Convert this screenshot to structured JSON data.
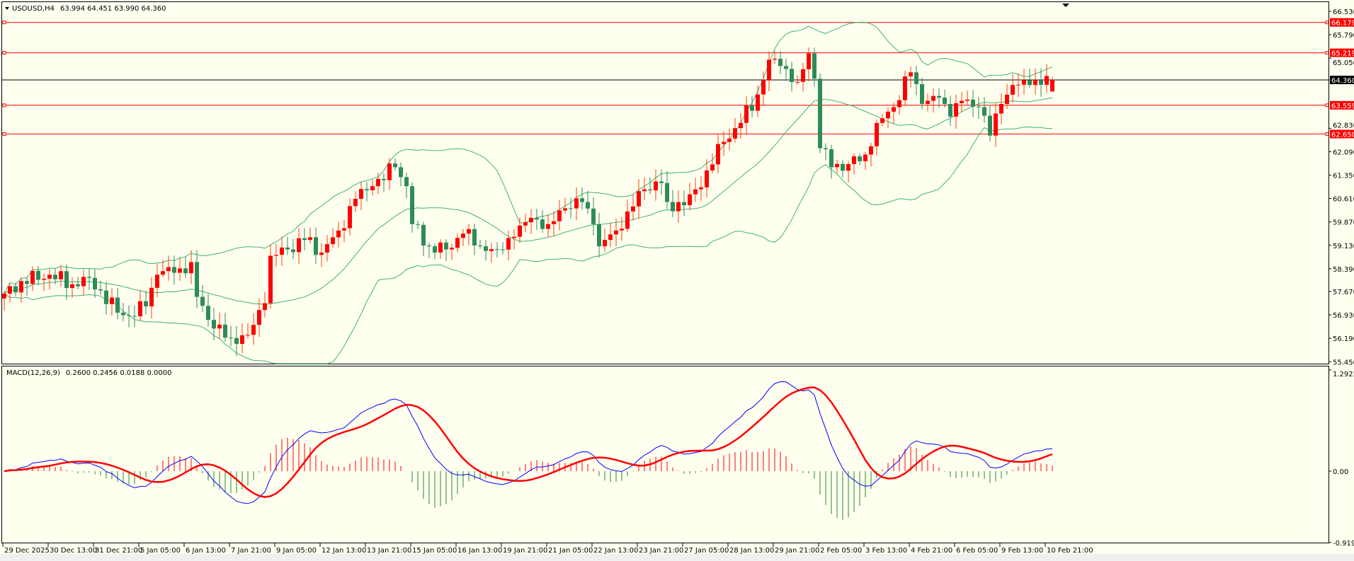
{
  "header": {
    "symbol_label": "USOUSD,H4",
    "ohlc": "63.994 64.451 63.990 64.360"
  },
  "macd_header": {
    "label": "MACD(12,26,9)",
    "values": "0.2600 0.2456 0.0188 0.0000"
  },
  "price_axis": {
    "ticks": [
      "66.530",
      "65.790",
      "65.050",
      "62.830",
      "62.090",
      "61.350",
      "60.610",
      "59.870",
      "59.130",
      "58.390",
      "57.670",
      "56.930",
      "56.190",
      "55.450"
    ]
  },
  "macd_axis": {
    "ticks": [
      "1.2922",
      "0.00",
      "-0.9194"
    ]
  },
  "time_axis": {
    "labels": [
      "29 Dec 2025",
      "30 Dec 13:00",
      "31 Dec 21:00",
      "5 Jan 05:00",
      "6 Jan 13:00",
      "7 Jan 21:00",
      "9 Jan 05:00",
      "12 Jan 13:00",
      "13 Jan 21:00",
      "15 Jan 05:00",
      "16 Jan 13:00",
      "19 Jan 21:00",
      "21 Jan 05:00",
      "22 Jan 13:00",
      "23 Jan 21:00",
      "27 Jan 05:00",
      "28 Jan 13:00",
      "29 Jan 21:00",
      "2 Feb 05:00",
      "3 Feb 13:00",
      "4 Feb 21:00",
      "6 Feb 05:00",
      "9 Feb 13:00",
      "10 Feb 21:00"
    ]
  },
  "levels": [
    {
      "price": "66.179",
      "color": "#ff0000"
    },
    {
      "price": "65.219",
      "color": "#ff0000"
    },
    {
      "price": "63.559",
      "color": "#ff0000"
    },
    {
      "price": "62.650",
      "color": "#ff0000"
    }
  ],
  "current_price": "64.360",
  "colors": {
    "background": "#fffff0",
    "bull": "#ff0000",
    "bear": "#2e8b57",
    "bands": "#3cb371",
    "macd": "#0000ff",
    "signal": "#ff0000"
  },
  "chart_data": {
    "type": "candlestick",
    "symbol": "USOUSD",
    "timeframe": "H4",
    "bars": 186,
    "close_anchors": [
      [
        0,
        57.6
      ],
      [
        3,
        58.0
      ],
      [
        8,
        58.2
      ],
      [
        12,
        57.9
      ],
      [
        15,
        58.1
      ],
      [
        17,
        57.7
      ],
      [
        20,
        57.0
      ],
      [
        22,
        56.9
      ],
      [
        25,
        57.2
      ],
      [
        27,
        58.2
      ],
      [
        31,
        58.4
      ],
      [
        33,
        58.6
      ],
      [
        34,
        57.5
      ],
      [
        37,
        56.5
      ],
      [
        40,
        56.2
      ],
      [
        43,
        56.3
      ],
      [
        46,
        57.3
      ],
      [
        47,
        58.8
      ],
      [
        50,
        59.0
      ],
      [
        53,
        59.3
      ],
      [
        56,
        58.9
      ],
      [
        59,
        59.6
      ],
      [
        62,
        60.6
      ],
      [
        65,
        61.0
      ],
      [
        69,
        61.6
      ],
      [
        71,
        61.0
      ],
      [
        72,
        59.8
      ],
      [
        75,
        59.1
      ],
      [
        78,
        59.0
      ],
      [
        81,
        59.5
      ],
      [
        84,
        59.1
      ],
      [
        87,
        59.0
      ],
      [
        90,
        59.4
      ],
      [
        93,
        60.0
      ],
      [
        96,
        59.8
      ],
      [
        99,
        60.3
      ],
      [
        102,
        60.5
      ],
      [
        104,
        59.8
      ],
      [
        105,
        59.1
      ],
      [
        108,
        59.6
      ],
      [
        110,
        60.2
      ],
      [
        113,
        60.9
      ],
      [
        116,
        61.1
      ],
      [
        117,
        60.5
      ],
      [
        120,
        60.4
      ],
      [
        122,
        60.9
      ],
      [
        124,
        61.5
      ],
      [
        127,
        62.4
      ],
      [
        130,
        63.0
      ],
      [
        133,
        63.9
      ],
      [
        135,
        65.0
      ],
      [
        137,
        64.8
      ],
      [
        140,
        64.3
      ],
      [
        142,
        65.2
      ],
      [
        143,
        64.4
      ],
      [
        144,
        62.2
      ],
      [
        146,
        61.6
      ],
      [
        149,
        61.7
      ],
      [
        152,
        62.0
      ],
      [
        154,
        63.0
      ],
      [
        157,
        63.5
      ],
      [
        160,
        64.6
      ],
      [
        162,
        63.6
      ],
      [
        165,
        63.8
      ],
      [
        167,
        63.2
      ],
      [
        169,
        63.7
      ],
      [
        172,
        63.5
      ],
      [
        174,
        62.6
      ],
      [
        176,
        63.6
      ],
      [
        178,
        64.2
      ],
      [
        181,
        64.2
      ],
      [
        185,
        64.36
      ]
    ],
    "last_bar": {
      "open": 63.994,
      "high": 64.451,
      "low": 63.99,
      "close": 64.36
    },
    "price_range": [
      55.45,
      66.53
    ],
    "macd_range": [
      -0.9194,
      1.2922
    ],
    "indicators": [
      "Bollinger Bands(20,2)",
      "MACD(12,26,9)"
    ]
  }
}
